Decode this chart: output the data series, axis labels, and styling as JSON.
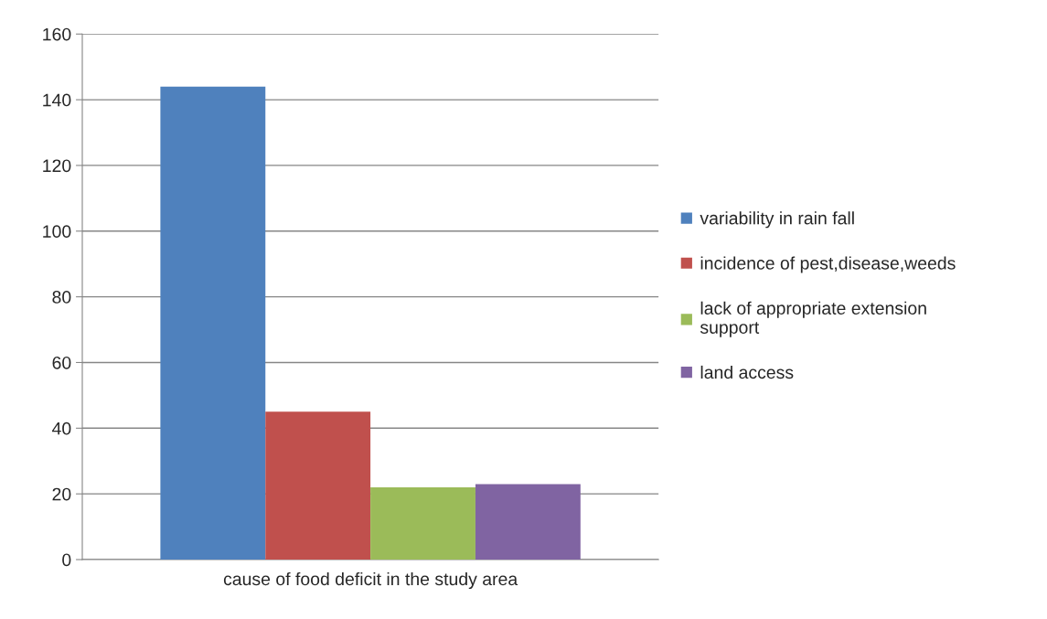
{
  "chart_data": {
    "type": "bar",
    "categories": [
      "cause of food deficit in the study area"
    ],
    "series": [
      {
        "name": "variability in rain fall",
        "color": "#4f81bd",
        "values": [
          144
        ]
      },
      {
        "name": "incidence of pest,disease,weeds",
        "color": "#c0504d",
        "values": [
          45
        ]
      },
      {
        "name": "lack of appropriate extension support",
        "color": "#9bbb59",
        "values": [
          22
        ]
      },
      {
        "name": "land access",
        "color": "#8064a2",
        "values": [
          23
        ]
      }
    ],
    "ylim": [
      0,
      160
    ],
    "yticks": [
      0,
      20,
      40,
      60,
      80,
      100,
      120,
      140,
      160
    ],
    "grid": "y",
    "legend": "right"
  }
}
